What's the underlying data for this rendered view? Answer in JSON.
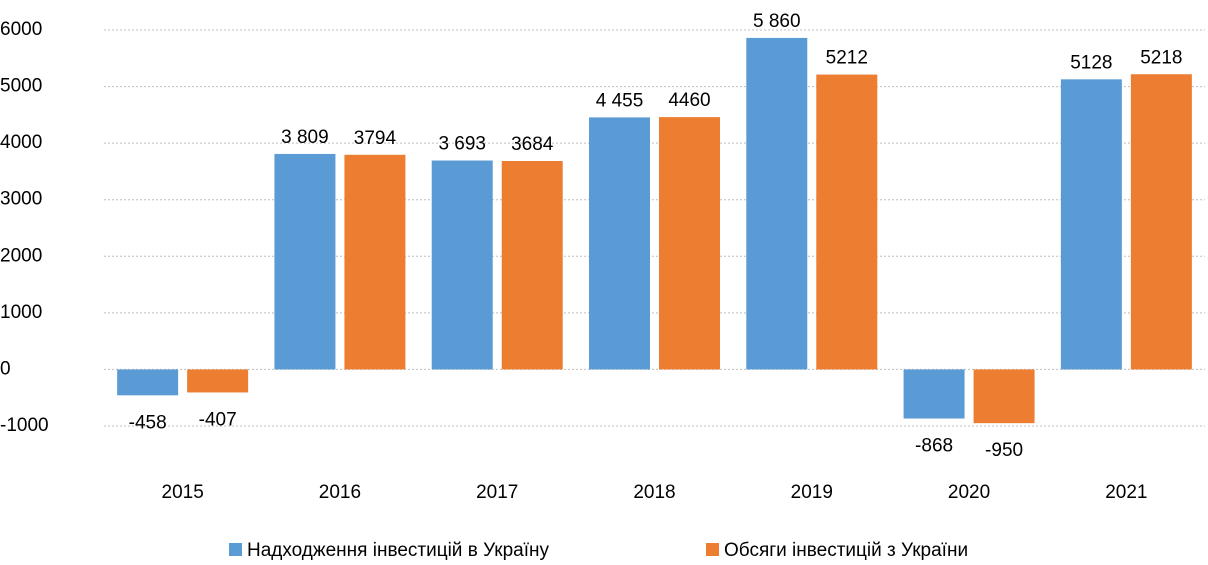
{
  "chart_data": {
    "type": "bar",
    "categories": [
      "2015",
      "2016",
      "2017",
      "2018",
      "2019",
      "2020",
      "2021"
    ],
    "series": [
      {
        "name": "Надходження інвестицій в Україну",
        "color": "#5b9bd5",
        "values": [
          -458,
          3809,
          3693,
          4455,
          5860,
          -868,
          5128
        ],
        "value_labels": [
          "-458",
          "3 809",
          "3 693",
          "4 455",
          "5 860",
          "-868",
          "5128"
        ]
      },
      {
        "name": "Обсяги інвестицій з України",
        "color": "#ed7d31",
        "values": [
          -407,
          3794,
          3684,
          4460,
          5212,
          -950,
          5218
        ]
      }
    ],
    "ylim": [
      -1000,
      6000
    ],
    "yticks": [
      -1000,
      0,
      1000,
      2000,
      3000,
      4000,
      5000,
      6000
    ],
    "grid": true,
    "legend": "bottom"
  }
}
